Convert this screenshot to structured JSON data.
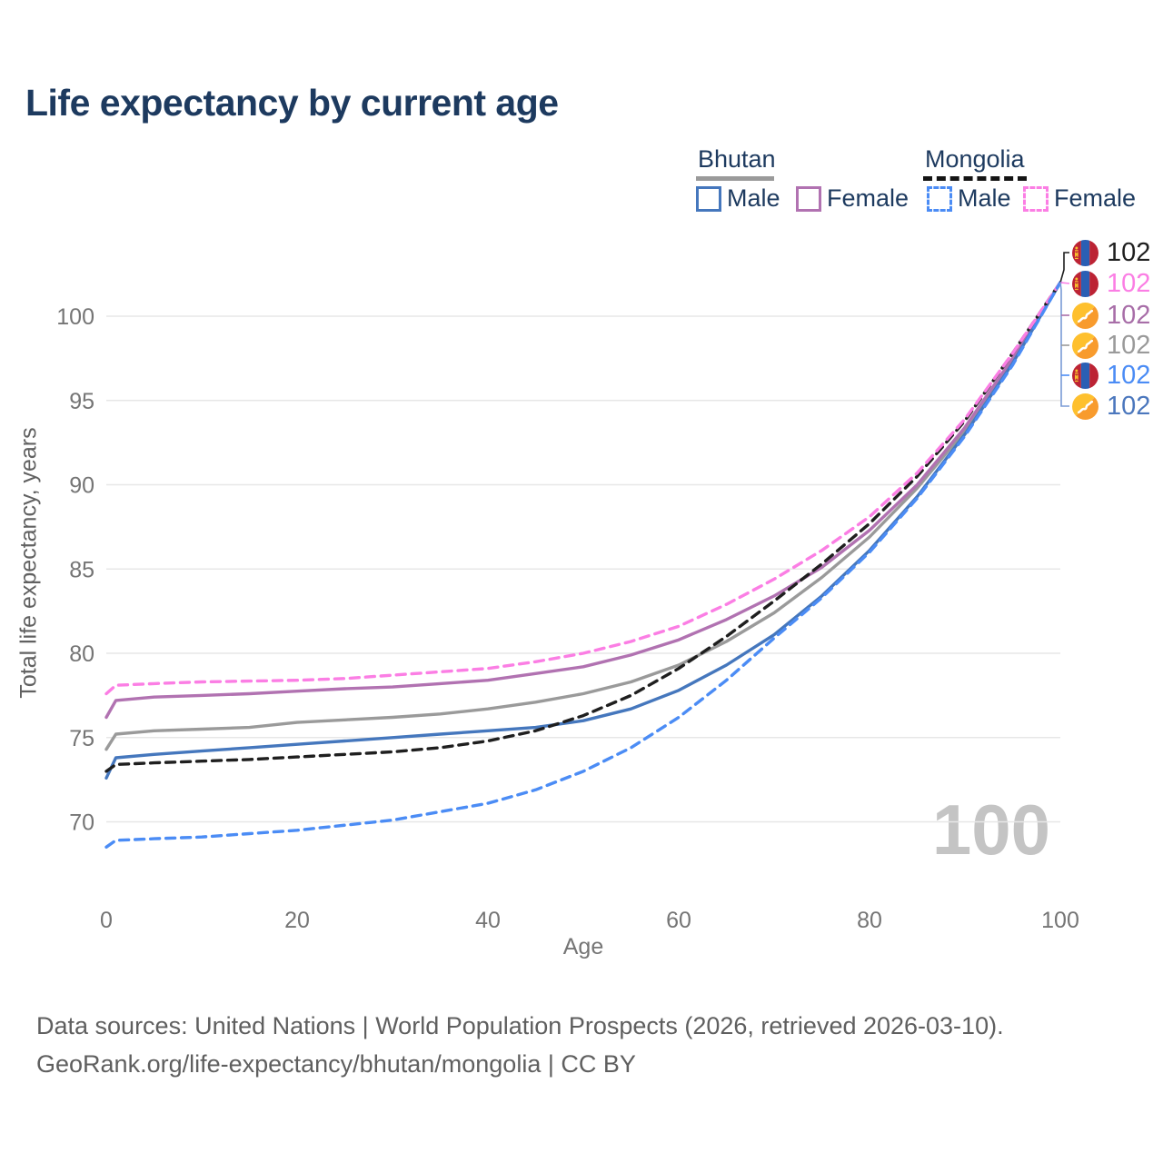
{
  "title": "Life expectancy by current age",
  "legend": {
    "bhutan": {
      "country": "Bhutan",
      "male": "Male",
      "female": "Female"
    },
    "mongolia": {
      "country": "Mongolia",
      "male": "Male",
      "female": "Female"
    }
  },
  "watermark": "100",
  "footer": {
    "line1": "Data sources: United Nations | World Population Prospects (2026, retrieved 2026-03-10).",
    "line2": "GeoRank.org/life-expectancy/bhutan/mongolia | CC BY"
  },
  "colors": {
    "title": "#1d3a5f",
    "legend_text": "#1d3a5f",
    "bhutan_male": "#4577bd",
    "bhutan_female": "#b172b1",
    "bhutan_total": "#9a9a9a",
    "mongolia_male": "#4b8cf5",
    "mongolia_female": "#fb7ee4",
    "mongolia_total": "#1f1f1f",
    "grid": "#e7e7e7",
    "tick": "#757575",
    "footer": "#5f5f5f",
    "watermark": "#c4c4c4",
    "spine": "#7a9bd6"
  },
  "end_labels": [
    {
      "country": "Mongolia",
      "flag": "mongolia-flag-icon",
      "value": "102",
      "color": "#1f1f1f",
      "series": "mongolia_total"
    },
    {
      "country": "Mongolia",
      "flag": "mongolia-flag-icon",
      "value": "102",
      "color": "#fb7ee4",
      "series": "mongolia_female"
    },
    {
      "country": "Bhutan",
      "flag": "bhutan-flag-icon",
      "value": "102",
      "color": "#a86ea8",
      "series": "bhutan_female"
    },
    {
      "country": "Bhutan",
      "flag": "bhutan-flag-icon",
      "value": "102",
      "color": "#9a9a9a",
      "series": "bhutan_total"
    },
    {
      "country": "Mongolia",
      "flag": "mongolia-flag-icon",
      "value": "102",
      "color": "#4b8cf5",
      "series": "mongolia_male"
    },
    {
      "country": "Bhutan",
      "flag": "bhutan-flag-icon",
      "value": "102",
      "color": "#4b77bd",
      "series": "bhutan_male"
    }
  ],
  "chart_data": {
    "type": "line",
    "title": "Life expectancy by current age",
    "xlabel": "Age",
    "ylabel": "Total life expectancy, years",
    "xlim": [
      0,
      100
    ],
    "ylim": [
      66,
      103
    ],
    "xticks": [
      0,
      20,
      40,
      60,
      80,
      100
    ],
    "yticks": [
      70,
      75,
      80,
      85,
      90,
      95,
      100
    ],
    "grid": true,
    "legend_position": "top-right",
    "series": [
      {
        "id": "bhutan_total",
        "name": "Bhutan",
        "country": "Bhutan",
        "sex": "Total",
        "style": "solid",
        "color": "#9a9a9a",
        "dash": "",
        "points": [
          [
            0,
            74.3
          ],
          [
            1,
            75.2
          ],
          [
            5,
            75.4
          ],
          [
            10,
            75.5
          ],
          [
            15,
            75.6
          ],
          [
            20,
            75.9
          ],
          [
            25,
            76.05
          ],
          [
            30,
            76.2
          ],
          [
            35,
            76.4
          ],
          [
            40,
            76.7
          ],
          [
            45,
            77.1
          ],
          [
            50,
            77.6
          ],
          [
            55,
            78.3
          ],
          [
            60,
            79.3
          ],
          [
            65,
            80.7
          ],
          [
            70,
            82.4
          ],
          [
            75,
            84.5
          ],
          [
            80,
            86.9
          ],
          [
            85,
            89.8
          ],
          [
            90,
            93.2
          ],
          [
            95,
            97.4
          ],
          [
            100,
            102
          ]
        ]
      },
      {
        "id": "bhutan_female",
        "name": "Bhutan Female",
        "country": "Bhutan",
        "sex": "Female",
        "style": "solid",
        "color": "#b172b1",
        "dash": "",
        "points": [
          [
            0,
            76.2
          ],
          [
            1,
            77.2
          ],
          [
            5,
            77.4
          ],
          [
            10,
            77.5
          ],
          [
            15,
            77.6
          ],
          [
            20,
            77.75
          ],
          [
            25,
            77.9
          ],
          [
            30,
            78.0
          ],
          [
            35,
            78.2
          ],
          [
            40,
            78.4
          ],
          [
            45,
            78.8
          ],
          [
            50,
            79.2
          ],
          [
            55,
            79.9
          ],
          [
            60,
            80.8
          ],
          [
            65,
            82.0
          ],
          [
            70,
            83.4
          ],
          [
            75,
            85.1
          ],
          [
            80,
            87.3
          ],
          [
            85,
            90.0
          ],
          [
            90,
            93.4
          ],
          [
            95,
            97.5
          ],
          [
            100,
            102
          ]
        ]
      },
      {
        "id": "bhutan_male",
        "name": "Bhutan Male",
        "country": "Bhutan",
        "sex": "Male",
        "style": "solid",
        "color": "#4577bd",
        "dash": "",
        "points": [
          [
            0,
            72.6
          ],
          [
            1,
            73.8
          ],
          [
            5,
            74.0
          ],
          [
            10,
            74.2
          ],
          [
            15,
            74.4
          ],
          [
            20,
            74.6
          ],
          [
            25,
            74.8
          ],
          [
            30,
            75.0
          ],
          [
            35,
            75.2
          ],
          [
            40,
            75.4
          ],
          [
            45,
            75.6
          ],
          [
            50,
            76.0
          ],
          [
            55,
            76.7
          ],
          [
            60,
            77.8
          ],
          [
            65,
            79.3
          ],
          [
            70,
            81.1
          ],
          [
            75,
            83.4
          ],
          [
            80,
            86.1
          ],
          [
            85,
            89.3
          ],
          [
            90,
            93.0
          ],
          [
            95,
            97.2
          ],
          [
            100,
            102
          ]
        ]
      },
      {
        "id": "mongolia_total",
        "name": "Mongolia",
        "country": "Mongolia",
        "sex": "Total",
        "style": "dashed",
        "color": "#1f1f1f",
        "dash": "10 7",
        "points": [
          [
            0,
            73.0
          ],
          [
            1,
            73.4
          ],
          [
            5,
            73.5
          ],
          [
            10,
            73.6
          ],
          [
            15,
            73.7
          ],
          [
            20,
            73.85
          ],
          [
            25,
            74.0
          ],
          [
            30,
            74.15
          ],
          [
            35,
            74.4
          ],
          [
            40,
            74.8
          ],
          [
            45,
            75.4
          ],
          [
            50,
            76.3
          ],
          [
            55,
            77.5
          ],
          [
            60,
            79.1
          ],
          [
            65,
            81.0
          ],
          [
            70,
            83.1
          ],
          [
            75,
            85.3
          ],
          [
            80,
            87.7
          ],
          [
            85,
            90.5
          ],
          [
            90,
            93.8
          ],
          [
            95,
            97.8
          ],
          [
            100,
            102
          ]
        ]
      },
      {
        "id": "mongolia_female",
        "name": "Mongolia Female",
        "country": "Mongolia",
        "sex": "Female",
        "style": "dashed",
        "color": "#fb7ee4",
        "dash": "10 7",
        "points": [
          [
            0,
            77.6
          ],
          [
            1,
            78.1
          ],
          [
            5,
            78.2
          ],
          [
            10,
            78.3
          ],
          [
            15,
            78.35
          ],
          [
            20,
            78.4
          ],
          [
            25,
            78.5
          ],
          [
            30,
            78.7
          ],
          [
            35,
            78.9
          ],
          [
            40,
            79.1
          ],
          [
            45,
            79.5
          ],
          [
            50,
            80.0
          ],
          [
            55,
            80.7
          ],
          [
            60,
            81.6
          ],
          [
            65,
            82.9
          ],
          [
            70,
            84.4
          ],
          [
            75,
            86.1
          ],
          [
            80,
            88.1
          ],
          [
            85,
            90.7
          ],
          [
            90,
            93.9
          ],
          [
            95,
            97.8
          ],
          [
            100,
            102
          ]
        ]
      },
      {
        "id": "mongolia_male",
        "name": "Mongolia Male",
        "country": "Mongolia",
        "sex": "Male",
        "style": "dashed",
        "color": "#4b8cf5",
        "dash": "10 7",
        "points": [
          [
            0,
            68.5
          ],
          [
            1,
            68.9
          ],
          [
            5,
            69.0
          ],
          [
            10,
            69.1
          ],
          [
            15,
            69.3
          ],
          [
            20,
            69.5
          ],
          [
            25,
            69.8
          ],
          [
            30,
            70.1
          ],
          [
            35,
            70.6
          ],
          [
            40,
            71.1
          ],
          [
            45,
            71.9
          ],
          [
            50,
            73.0
          ],
          [
            55,
            74.4
          ],
          [
            60,
            76.2
          ],
          [
            65,
            78.4
          ],
          [
            70,
            80.9
          ],
          [
            75,
            83.3
          ],
          [
            80,
            86.0
          ],
          [
            85,
            89.2
          ],
          [
            90,
            92.9
          ],
          [
            95,
            97.1
          ],
          [
            100,
            102
          ]
        ]
      }
    ]
  }
}
